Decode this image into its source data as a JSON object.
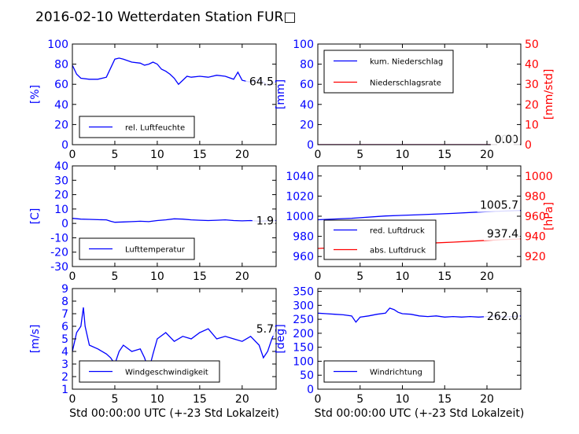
{
  "title": "2016-02-10 Wetterdaten Station FUR□",
  "colors": {
    "blue": "#0000ff",
    "red": "#ff0000",
    "black": "#000000",
    "white": "#ffffff"
  },
  "chart_data": [
    {
      "id": "humidity",
      "type": "line",
      "ylabel": "[%]",
      "xlim": [
        0,
        24
      ],
      "ylim": [
        0,
        100
      ],
      "xticks": [
        0,
        5,
        10,
        15,
        20
      ],
      "yticks": [
        0,
        20,
        40,
        60,
        80,
        100
      ],
      "series": [
        {
          "name": "rel. Luftfeuchte",
          "color": "#0000ff",
          "x": [
            0,
            0.5,
            1,
            2,
            3,
            4,
            4.5,
            5,
            5.5,
            6,
            7,
            8,
            8.5,
            9,
            9.5,
            10,
            10.5,
            11,
            11.5,
            12,
            12.5,
            13,
            13.5,
            14,
            15,
            16,
            17,
            18,
            19,
            19.5,
            20,
            21,
            22,
            23,
            24
          ],
          "y": [
            79,
            70,
            66,
            65,
            65,
            67,
            76,
            85,
            86,
            85,
            82,
            81,
            79,
            80,
            82,
            80,
            75,
            73,
            70,
            66,
            60,
            64,
            68,
            67,
            68,
            67,
            69,
            68,
            65,
            72,
            64,
            62,
            65,
            59,
            63
          ]
        }
      ],
      "last_value_label": "64.5",
      "legend": "lower-left"
    },
    {
      "id": "precip",
      "type": "line",
      "ylabel": "[mm]",
      "ylabel2": "[mm/std]",
      "xlim": [
        0,
        24
      ],
      "ylim": [
        0,
        100
      ],
      "ylim2": [
        0,
        50
      ],
      "xticks": [
        0,
        5,
        10,
        15,
        20
      ],
      "yticks": [
        0,
        20,
        40,
        60,
        80,
        100
      ],
      "yticks2": [
        0,
        10,
        20,
        30,
        40,
        50
      ],
      "series": [
        {
          "name": "kum. Niederschlag",
          "color": "#0000ff",
          "x": [
            0,
            24
          ],
          "y": [
            0,
            0
          ]
        },
        {
          "name": "Niederschlagsrate",
          "color": "#ff0000",
          "axis": "right",
          "x": [
            0,
            24
          ],
          "y": [
            0,
            0
          ]
        }
      ],
      "last_value_labels": [
        "0.0",
        "0.0"
      ],
      "legend": "upper-left"
    },
    {
      "id": "temperature",
      "type": "line",
      "ylabel": "[C]",
      "xlim": [
        0,
        24
      ],
      "ylim": [
        -30,
        40
      ],
      "xticks": [
        0,
        5,
        10,
        15,
        20
      ],
      "yticks": [
        -30,
        -20,
        -10,
        0,
        10,
        20,
        30,
        40
      ],
      "series": [
        {
          "name": "Lufttemperatur",
          "color": "#0000ff",
          "x": [
            0,
            1,
            2,
            3,
            4,
            4.5,
            5,
            6,
            7,
            8,
            9,
            10,
            11,
            12,
            13,
            14,
            15,
            16,
            17,
            18,
            19,
            20,
            21,
            22,
            23,
            24
          ],
          "y": [
            3.5,
            3.0,
            2.8,
            2.6,
            2.5,
            1.5,
            0.8,
            1.0,
            1.2,
            1.5,
            1.2,
            2.0,
            2.5,
            3.2,
            3.0,
            2.5,
            2.2,
            2.0,
            2.2,
            2.5,
            2.0,
            1.8,
            2.0,
            1.5,
            1.8,
            2.0
          ]
        }
      ],
      "last_value_label": "1.9",
      "legend": "lower-left"
    },
    {
      "id": "pressure",
      "type": "line",
      "ylabel2": "[hPa]",
      "xlim": [
        0,
        24
      ],
      "ylim": [
        950,
        1050
      ],
      "ylim2": [
        910,
        1010
      ],
      "xticks": [
        0,
        5,
        10,
        15,
        20
      ],
      "yticks": [
        960,
        980,
        1000,
        1020,
        1040
      ],
      "yticks2": [
        920,
        940,
        960,
        980,
        1000
      ],
      "series": [
        {
          "name": "red. Luftdruck",
          "color": "#0000ff",
          "x": [
            0,
            4,
            8,
            12,
            16,
            20,
            24
          ],
          "y": [
            996.5,
            998.0,
            1000.2,
            1001.5,
            1002.8,
            1004.5,
            1005.7
          ]
        },
        {
          "name": "abs. Luftdruck",
          "color": "#ff0000",
          "axis": "right",
          "x": [
            0,
            4,
            8,
            12,
            16,
            20,
            24
          ],
          "y": [
            928.0,
            929.5,
            931.0,
            932.8,
            934.2,
            936.0,
            937.4
          ]
        }
      ],
      "last_value_labels": [
        "1005.7",
        "937.4"
      ],
      "legend": "lower-left"
    },
    {
      "id": "windspeed",
      "type": "line",
      "ylabel": "[m/s]",
      "xlabel": "Std 00:00:00 UTC (+-23 Std Lokalzeit)",
      "xlim": [
        0,
        24
      ],
      "ylim": [
        1,
        9
      ],
      "xticks": [
        0,
        5,
        10,
        15,
        20
      ],
      "yticks": [
        1,
        2,
        3,
        4,
        5,
        6,
        7,
        8,
        9
      ],
      "series": [
        {
          "name": "Windgeschwindigkeit",
          "color": "#0000ff",
          "x": [
            0,
            0.5,
            1,
            1.3,
            1.5,
            2,
            3,
            4,
            4.5,
            5,
            5.5,
            6,
            7,
            8,
            8.5,
            9,
            9.5,
            10,
            11,
            12,
            13,
            14,
            15,
            16,
            17,
            18,
            19,
            20,
            21,
            22,
            22.5,
            23,
            23.5,
            24
          ],
          "y": [
            4.0,
            5.5,
            6.0,
            7.5,
            6.0,
            4.5,
            4.2,
            3.8,
            3.5,
            3.0,
            4.0,
            4.5,
            4.0,
            4.2,
            3.5,
            2.5,
            3.8,
            5.0,
            5.5,
            4.8,
            5.2,
            5.0,
            5.5,
            5.8,
            5.0,
            5.2,
            5.0,
            4.8,
            5.2,
            4.5,
            3.5,
            4.0,
            5.0,
            5.8
          ]
        }
      ],
      "last_value_label": "5.7",
      "legend": "lower-left"
    },
    {
      "id": "winddir",
      "type": "line",
      "ylabel": "[deg]",
      "xlabel": "Std 00:00:00 UTC (+-23 Std Lokalzeit)",
      "xlim": [
        0,
        24
      ],
      "ylim": [
        0,
        360
      ],
      "xticks": [
        0,
        5,
        10,
        15,
        20
      ],
      "yticks": [
        0,
        50,
        100,
        150,
        200,
        250,
        300,
        350
      ],
      "series": [
        {
          "name": "Windrichtung",
          "color": "#0000ff",
          "x": [
            0,
            1,
            2,
            3,
            4,
            4.5,
            5,
            6,
            7,
            8,
            8.5,
            9,
            9.5,
            10,
            11,
            12,
            13,
            14,
            15,
            16,
            17,
            18,
            19,
            20,
            21,
            22,
            23,
            24
          ],
          "y": [
            272,
            270,
            268,
            266,
            262,
            240,
            258,
            262,
            268,
            272,
            290,
            285,
            275,
            270,
            268,
            262,
            260,
            262,
            258,
            260,
            258,
            260,
            258,
            260,
            262,
            258,
            260,
            262
          ]
        }
      ],
      "last_value_label": "262.0",
      "legend": "lower-left"
    }
  ]
}
